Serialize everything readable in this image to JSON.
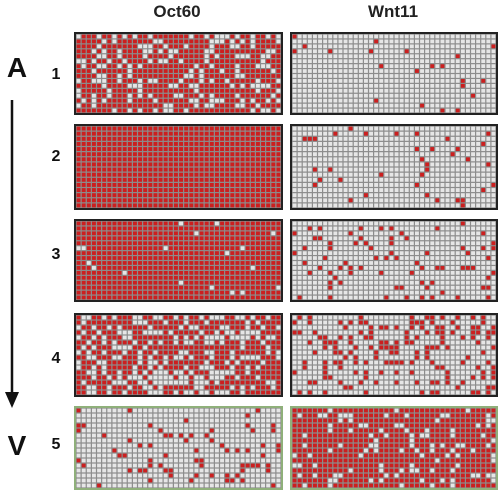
{
  "columns": {
    "left": "Oct60",
    "right": "Wnt11"
  },
  "axis": {
    "top": "A",
    "bottom": "V"
  },
  "rows": [
    {
      "label": "1",
      "oct60": {
        "fill": 0.72
      },
      "wnt11": {
        "fill": 0.03
      }
    },
    {
      "label": "2",
      "oct60": {
        "fill": 1.0
      },
      "wnt11": {
        "fill": 0.05
      }
    },
    {
      "label": "3",
      "oct60": {
        "fill": 0.97
      },
      "wnt11": {
        "fill": 0.09
      }
    },
    {
      "label": "4",
      "oct60": {
        "fill": 0.62
      },
      "wnt11": {
        "fill": 0.27
      }
    },
    {
      "label": "5",
      "oct60": {
        "fill": 0.12
      },
      "wnt11": {
        "fill": 0.82
      }
    }
  ],
  "colors": {
    "active": "#cc1f1f",
    "inactive": "#e6e6e6",
    "grid_bg": "#8c8c8c",
    "highlight_border": "#8fb07a"
  }
}
